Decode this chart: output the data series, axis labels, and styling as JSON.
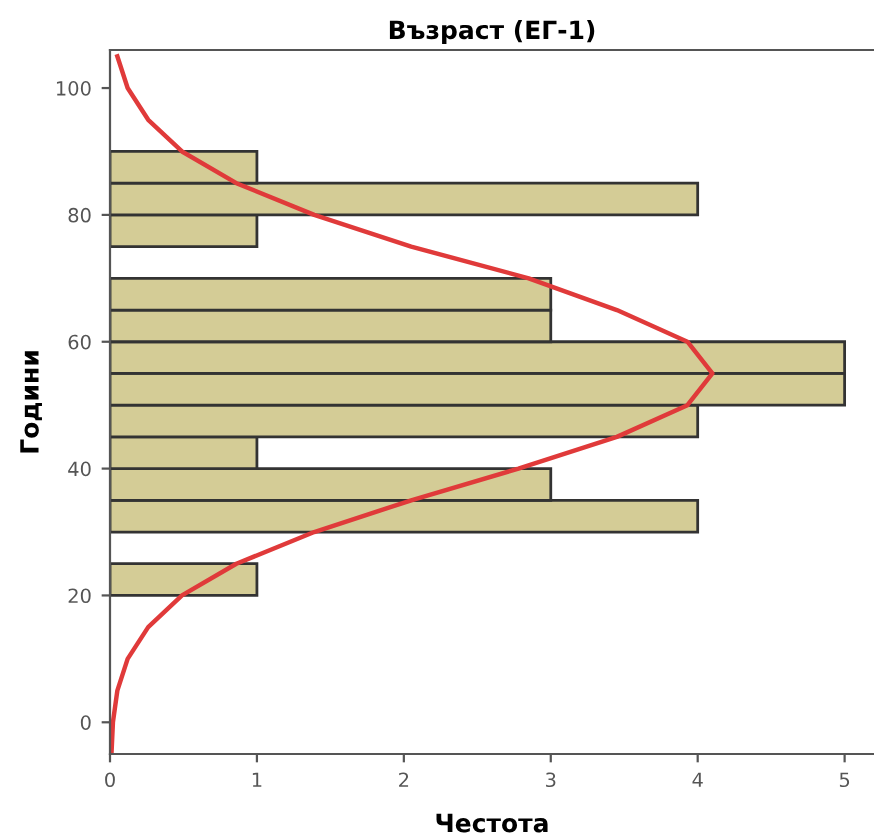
{
  "chart_data": {
    "type": "histogram",
    "title": "Възраст (ЕГ-1)",
    "xlabel": "Честота",
    "ylabel": "Години",
    "orientation": "horizontal",
    "bins": [
      20,
      25,
      30,
      35,
      40,
      45,
      50,
      55,
      60,
      65,
      70,
      75,
      80,
      85,
      90
    ],
    "series": [
      {
        "type": "histogram",
        "color": "#d4cc96",
        "values": [
          1,
          0,
          4,
          3,
          1,
          4,
          5,
          5,
          3,
          3,
          0,
          1,
          4,
          1
        ]
      },
      {
        "type": "line",
        "color": "#e03a3a",
        "x": [
          -5,
          0,
          5,
          10,
          15,
          20,
          25,
          30,
          35,
          40,
          45,
          50,
          55,
          60,
          65,
          70,
          75,
          80,
          85,
          90,
          95,
          100,
          105
        ],
        "values": [
          0.01,
          0.02,
          0.05,
          0.12,
          0.26,
          0.49,
          0.86,
          1.39,
          2.05,
          2.78,
          3.45,
          3.93,
          4.1,
          3.93,
          3.45,
          2.85,
          2.05,
          1.39,
          0.86,
          0.49,
          0.26,
          0.12,
          0.05
        ]
      }
    ],
    "xlim": [
      0,
      5.2
    ],
    "xticks": [
      0,
      1,
      2,
      3,
      4,
      5
    ],
    "ylim": [
      -5,
      106
    ],
    "yticks": [
      0,
      20,
      40,
      60,
      80,
      100
    ],
    "grid": false,
    "legend": false
  }
}
